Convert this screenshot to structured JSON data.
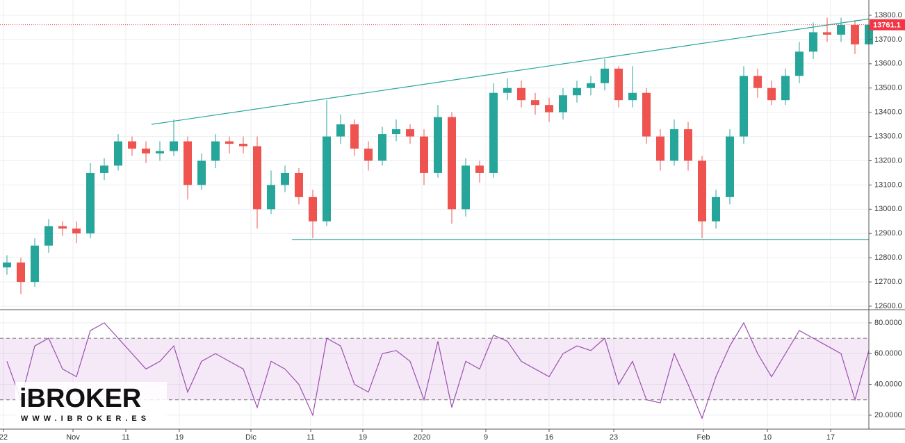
{
  "logo": {
    "name": "iBROKER",
    "url": "WWW.IBROKER.ES"
  },
  "chart_data": [
    {
      "type": "candlestick",
      "xlim": [
        -0.5,
        62
      ],
      "xticks": [
        {
          "value": -0.25,
          "label": "22"
        },
        {
          "value": 4.75,
          "label": "Nov"
        },
        {
          "value": 8.55,
          "label": "11"
        },
        {
          "value": 12.4,
          "label": "19"
        },
        {
          "value": 17.55,
          "label": "Dic"
        },
        {
          "value": 21.85,
          "label": "11"
        },
        {
          "value": 25.6,
          "label": "19"
        },
        {
          "value": 29.85,
          "label": "2020"
        },
        {
          "value": 34.45,
          "label": "9"
        },
        {
          "value": 39,
          "label": "16"
        },
        {
          "value": 43.65,
          "label": "23"
        },
        {
          "value": 50.1,
          "label": "Feb"
        },
        {
          "value": 54.7,
          "label": "10"
        },
        {
          "value": 59.25,
          "label": "17"
        }
      ],
      "ylim": [
        12588.5,
        13863
      ],
      "yticks": [
        {
          "value": 12600,
          "label": "12600.0"
        },
        {
          "value": 12700,
          "label": "12700.0"
        },
        {
          "value": 12800,
          "label": "12800.0"
        },
        {
          "value": 12900,
          "label": "12900.0"
        },
        {
          "value": 13000,
          "label": "13000.0"
        },
        {
          "value": 13100,
          "label": "13100.0"
        },
        {
          "value": 13200,
          "label": "13200.0"
        },
        {
          "value": 13300,
          "label": "13300.0"
        },
        {
          "value": 13400,
          "label": "13400.0"
        },
        {
          "value": 13500,
          "label": "13500.0"
        },
        {
          "value": 13600,
          "label": "13600.0"
        },
        {
          "value": 13700,
          "label": "13700.0"
        },
        {
          "value": 13800,
          "label": "13800.0"
        }
      ],
      "grid": true,
      "up_color": "#26a69a",
      "down_color": "#ef5350",
      "open": [
        12760,
        12780,
        12700,
        12850,
        12930,
        12920,
        12900,
        13150,
        13180,
        13280,
        13250,
        13230,
        13240,
        13280,
        13100,
        13200,
        13280,
        13270,
        13260,
        13000,
        13100,
        13150,
        13050,
        12950,
        13300,
        13350,
        13250,
        13200,
        13310,
        13330,
        13300,
        13150,
        13380,
        13000,
        13180,
        13150,
        13480,
        13500,
        13450,
        13430,
        13400,
        13470,
        13500,
        13520,
        13580,
        13450,
        13480,
        13300,
        13200,
        13330,
        13200,
        12950,
        13050,
        13300,
        13550,
        13500,
        13450,
        13550,
        13650,
        13730,
        13720,
        13760,
        13680
      ],
      "high": [
        12810,
        12800,
        12880,
        12960,
        12950,
        12950,
        13190,
        13210,
        13310,
        13300,
        13280,
        13280,
        13370,
        13300,
        13230,
        13310,
        13300,
        13300,
        13300,
        13160,
        13180,
        13170,
        13080,
        13450,
        13390,
        13370,
        13280,
        13340,
        13370,
        13350,
        13330,
        13430,
        13400,
        13210,
        13200,
        13520,
        13540,
        13530,
        13480,
        13460,
        13500,
        13530,
        13550,
        13620,
        13590,
        13590,
        13500,
        13330,
        13370,
        13360,
        13220,
        13080,
        13330,
        13590,
        13580,
        13530,
        13580,
        13690,
        13770,
        13790,
        13790,
        13780,
        13775
      ],
      "low": [
        12730,
        12650,
        12680,
        12820,
        12890,
        12860,
        12880,
        13120,
        13160,
        13220,
        13190,
        13200,
        13220,
        13040,
        13080,
        13170,
        13230,
        13230,
        12920,
        12980,
        13070,
        13020,
        12880,
        12930,
        13270,
        13220,
        13160,
        13180,
        13280,
        13270,
        13100,
        13130,
        12940,
        12970,
        13110,
        13130,
        13450,
        13420,
        13390,
        13360,
        13370,
        13440,
        13470,
        13490,
        13420,
        13420,
        13270,
        13160,
        13180,
        13160,
        12880,
        12920,
        13020,
        13270,
        13460,
        13430,
        13430,
        13520,
        13620,
        13690,
        13690,
        13640,
        13650
      ],
      "close": [
        12780,
        12700,
        12850,
        12930,
        12920,
        12900,
        13150,
        13180,
        13280,
        13250,
        13230,
        13240,
        13280,
        13100,
        13200,
        13280,
        13270,
        13260,
        13000,
        13100,
        13150,
        13050,
        12950,
        13300,
        13350,
        13250,
        13200,
        13310,
        13330,
        13300,
        13150,
        13380,
        13000,
        13180,
        13150,
        13480,
        13500,
        13450,
        13430,
        13400,
        13470,
        13500,
        13520,
        13580,
        13450,
        13480,
        13300,
        13200,
        13330,
        13200,
        12950,
        13050,
        13300,
        13550,
        13500,
        13450,
        13550,
        13650,
        13730,
        13720,
        13760,
        13680,
        13761.1
      ],
      "last_price": 13761.1,
      "last_price_color": "#f23645",
      "trendlines": [
        {
          "x": [
            10.4,
            62
          ],
          "y": [
            13350,
            13785
          ],
          "color": "#26a69a"
        },
        {
          "x": [
            20.5,
            62
          ],
          "y": [
            12875,
            12875
          ],
          "color": "#26a69a"
        }
      ]
    },
    {
      "type": "line",
      "xlim": [
        -0.5,
        62
      ],
      "ylim": [
        12.3,
        87.2
      ],
      "yticks": [
        {
          "value": 20,
          "label": "20.0000"
        },
        {
          "value": 40,
          "label": "40.0000"
        },
        {
          "value": 60,
          "label": "60.0000"
        },
        {
          "value": 80,
          "label": "80.0000"
        }
      ],
      "band": [
        30,
        70
      ],
      "band_color": "#9c27b0",
      "color": "#9c4fb0",
      "values": [
        55,
        30,
        65,
        70,
        50,
        45,
        75,
        80,
        70,
        60,
        50,
        55,
        65,
        35,
        55,
        60,
        55,
        50,
        25,
        55,
        50,
        40,
        20,
        70,
        65,
        40,
        35,
        60,
        62,
        55,
        30,
        68,
        25,
        55,
        50,
        72,
        68,
        55,
        50,
        45,
        60,
        65,
        62,
        70,
        40,
        55,
        30,
        28,
        60,
        40,
        18,
        45,
        65,
        80,
        60,
        45,
        60,
        75,
        70,
        65,
        60,
        30,
        62
      ]
    }
  ]
}
